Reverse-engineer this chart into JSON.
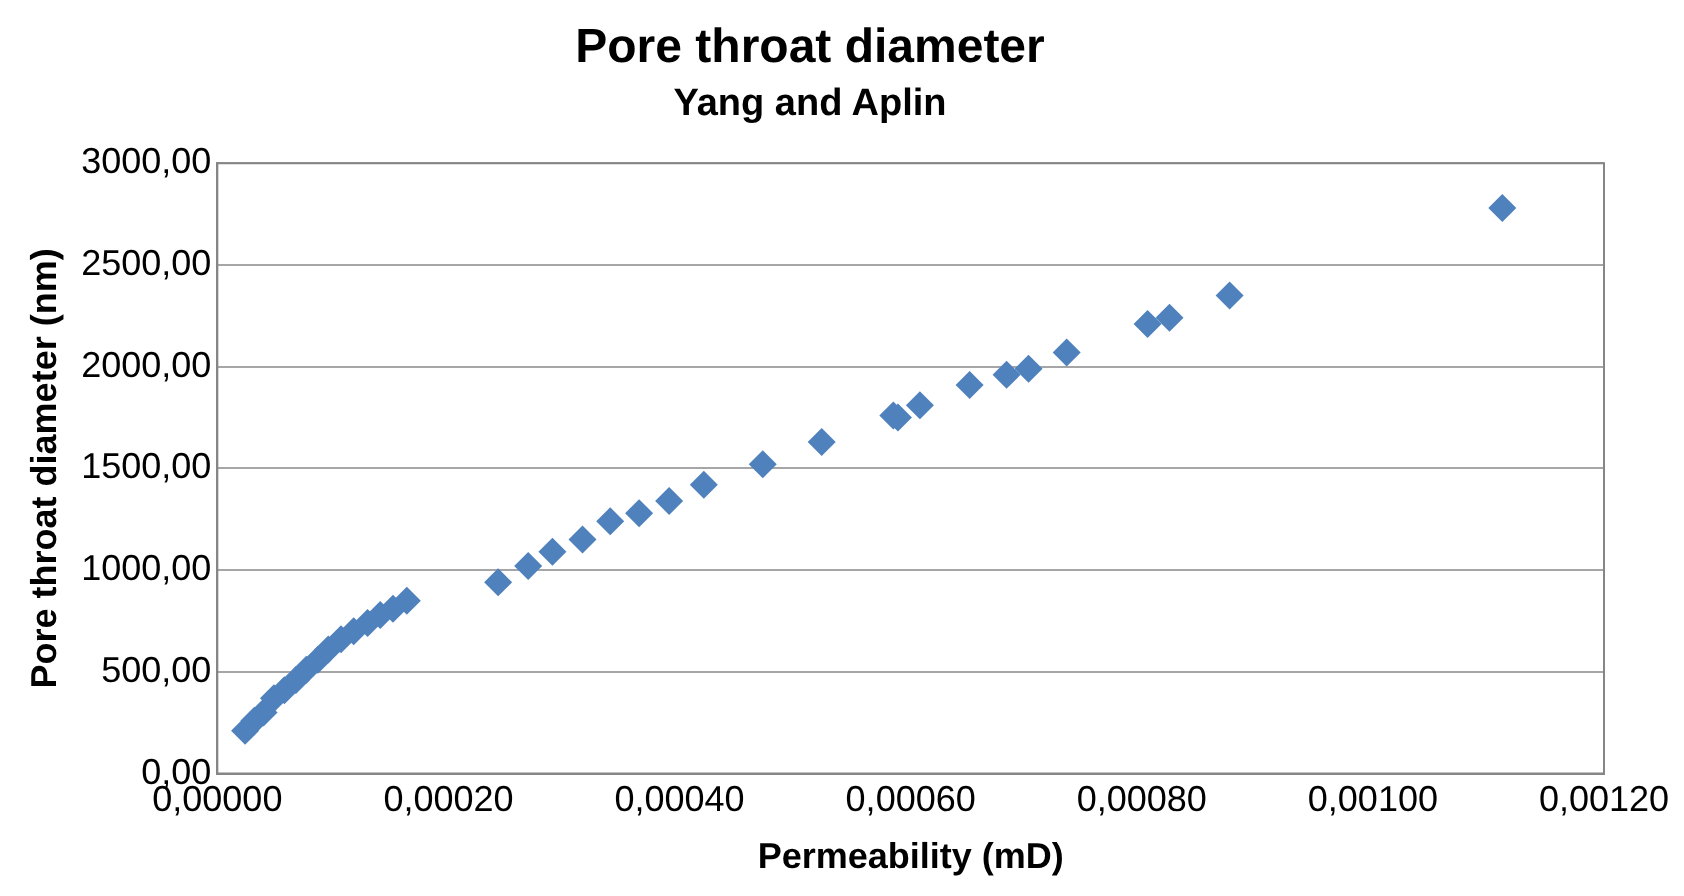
{
  "chart_data": {
    "type": "scatter",
    "title": "Pore throat diameter",
    "subtitle": "Yang and Aplin",
    "xlabel": "Permeability (mD)",
    "ylabel": "Pore throat diameter (nm)",
    "series": [
      {
        "color": "#4f81bd",
        "x": [
          2.4e-05,
          3.2e-05,
          4e-05,
          4.9e-05,
          5.8e-05,
          6.8e-05,
          7.7e-05,
          8.7e-05,
          9.6e-05,
          0.000107,
          0.000118,
          0.00013,
          0.000141,
          0.000152,
          0.000164,
          0.000243,
          0.000269,
          0.00029,
          0.000316,
          0.00034,
          0.000365,
          0.000391,
          0.000421,
          0.000472,
          0.000523,
          0.000585,
          0.000589,
          0.000608,
          0.000651,
          0.000683,
          0.000702,
          0.000735,
          0.000805,
          0.000824,
          0.000876,
          0.001112
        ],
        "values": [
          210,
          260,
          300,
          370,
          410,
          460,
          510,
          560,
          610,
          660,
          700,
          740,
          780,
          810,
          850,
          940,
          1020,
          1090,
          1150,
          1240,
          1280,
          1340,
          1420,
          1520,
          1630,
          1760,
          1750,
          1810,
          1910,
          1960,
          1990,
          2070,
          2210,
          2240,
          2350,
          2780
        ]
      }
    ],
    "xlim": [
      0,
      0.0012
    ],
    "ylim": [
      0,
      3000
    ],
    "xticks": [
      {
        "value": 0,
        "label": "0,00000"
      },
      {
        "value": 0.0002,
        "label": "0,00020"
      },
      {
        "value": 0.0004,
        "label": "0,00040"
      },
      {
        "value": 0.0006,
        "label": "0,00060"
      },
      {
        "value": 0.0008,
        "label": "0,00080"
      },
      {
        "value": 0.001,
        "label": "0,00100"
      },
      {
        "value": 0.0012,
        "label": "0,00120"
      }
    ],
    "yticks": [
      {
        "value": 0,
        "label": "0,00"
      },
      {
        "value": 500,
        "label": "500,00"
      },
      {
        "value": 1000,
        "label": "1000,00"
      },
      {
        "value": 1500,
        "label": "1500,00"
      },
      {
        "value": 2000,
        "label": "2000,00"
      },
      {
        "value": 2500,
        "label": "2500,00"
      },
      {
        "value": 3000,
        "label": "3000,00"
      }
    ],
    "grid": "y",
    "legend": false,
    "marker": "diamond"
  }
}
